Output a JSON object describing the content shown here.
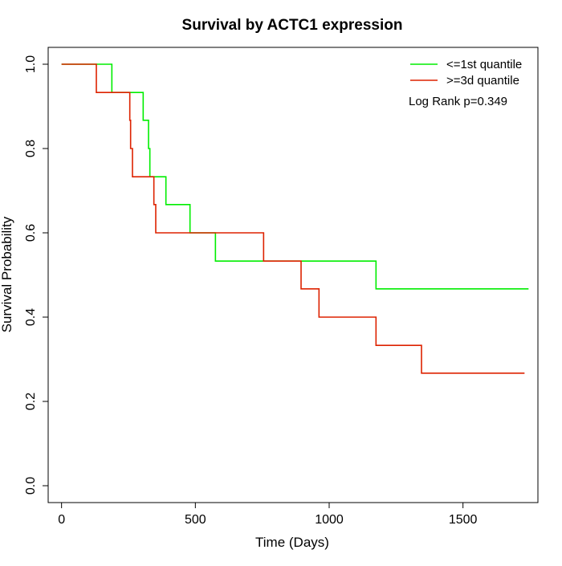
{
  "chart_data": {
    "type": "line",
    "title": "Survival by ACTC1 expression",
    "xlabel": "Time (Days)",
    "ylabel": "Survival Probability",
    "xlim": [
      -50,
      1780
    ],
    "ylim": [
      -0.04,
      1.04
    ],
    "x_ticks": [
      0,
      500,
      1000,
      1500
    ],
    "y_ticks": [
      0.0,
      0.2,
      0.4,
      0.6,
      0.8,
      1.0
    ],
    "x_tick_labels": [
      "0",
      "500",
      "1000",
      "1500"
    ],
    "y_tick_labels": [
      "0.0",
      "0.2",
      "0.4",
      "0.6",
      "0.8",
      "1.0"
    ],
    "grid": false,
    "legend_position": "top-right",
    "annotation": "Log Rank p=0.349",
    "series": [
      {
        "name": "<=1st quantile",
        "color": "#00ee00",
        "steps": [
          [
            0,
            1.0
          ],
          [
            188,
            0.933
          ],
          [
            305,
            0.867
          ],
          [
            325,
            0.8
          ],
          [
            330,
            0.733
          ],
          [
            390,
            0.667
          ],
          [
            480,
            0.6
          ],
          [
            575,
            0.533
          ],
          [
            1175,
            0.467
          ],
          [
            1745,
            0.467
          ]
        ]
      },
      {
        "name": ">=3d quantile",
        "color": "#dd2200",
        "steps": [
          [
            0,
            1.0
          ],
          [
            130,
            0.933
          ],
          [
            255,
            0.867
          ],
          [
            258,
            0.8
          ],
          [
            265,
            0.733
          ],
          [
            345,
            0.667
          ],
          [
            352,
            0.6
          ],
          [
            755,
            0.533
          ],
          [
            895,
            0.467
          ],
          [
            962,
            0.4
          ],
          [
            1175,
            0.333
          ],
          [
            1345,
            0.267
          ],
          [
            1730,
            0.267
          ]
        ]
      }
    ]
  }
}
